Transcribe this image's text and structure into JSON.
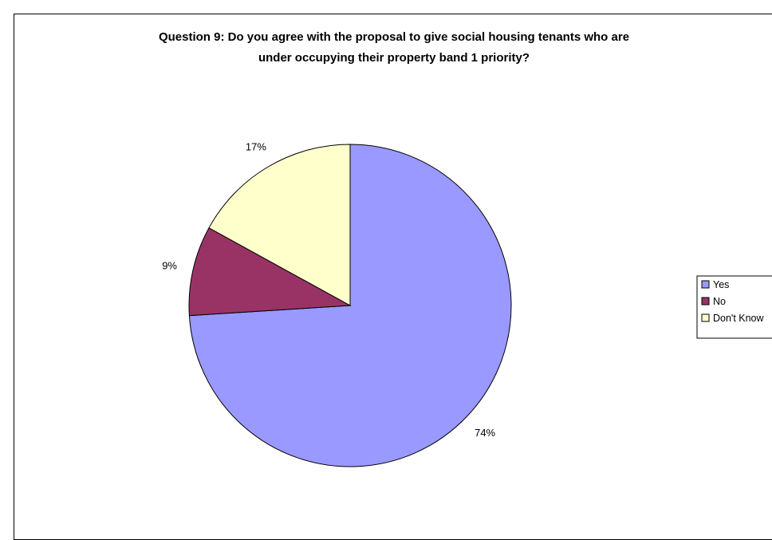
{
  "chart_data": {
    "type": "pie",
    "title_lines": [
      "Question 9: Do you agree with the proposal to give social housing tenants who are",
      "under occupying their property band 1 priority?"
    ],
    "slices": [
      {
        "name": "Yes",
        "value": 74,
        "label": "74%",
        "color": "#9999FF"
      },
      {
        "name": "No",
        "value": 9,
        "label": "9%",
        "color": "#993366"
      },
      {
        "name": "Don't Know",
        "value": 17,
        "label": "17%",
        "color": "#FFFFCC"
      }
    ],
    "legend": {
      "position": "right",
      "entries": [
        "Yes",
        "No",
        "Don't Know"
      ]
    }
  }
}
